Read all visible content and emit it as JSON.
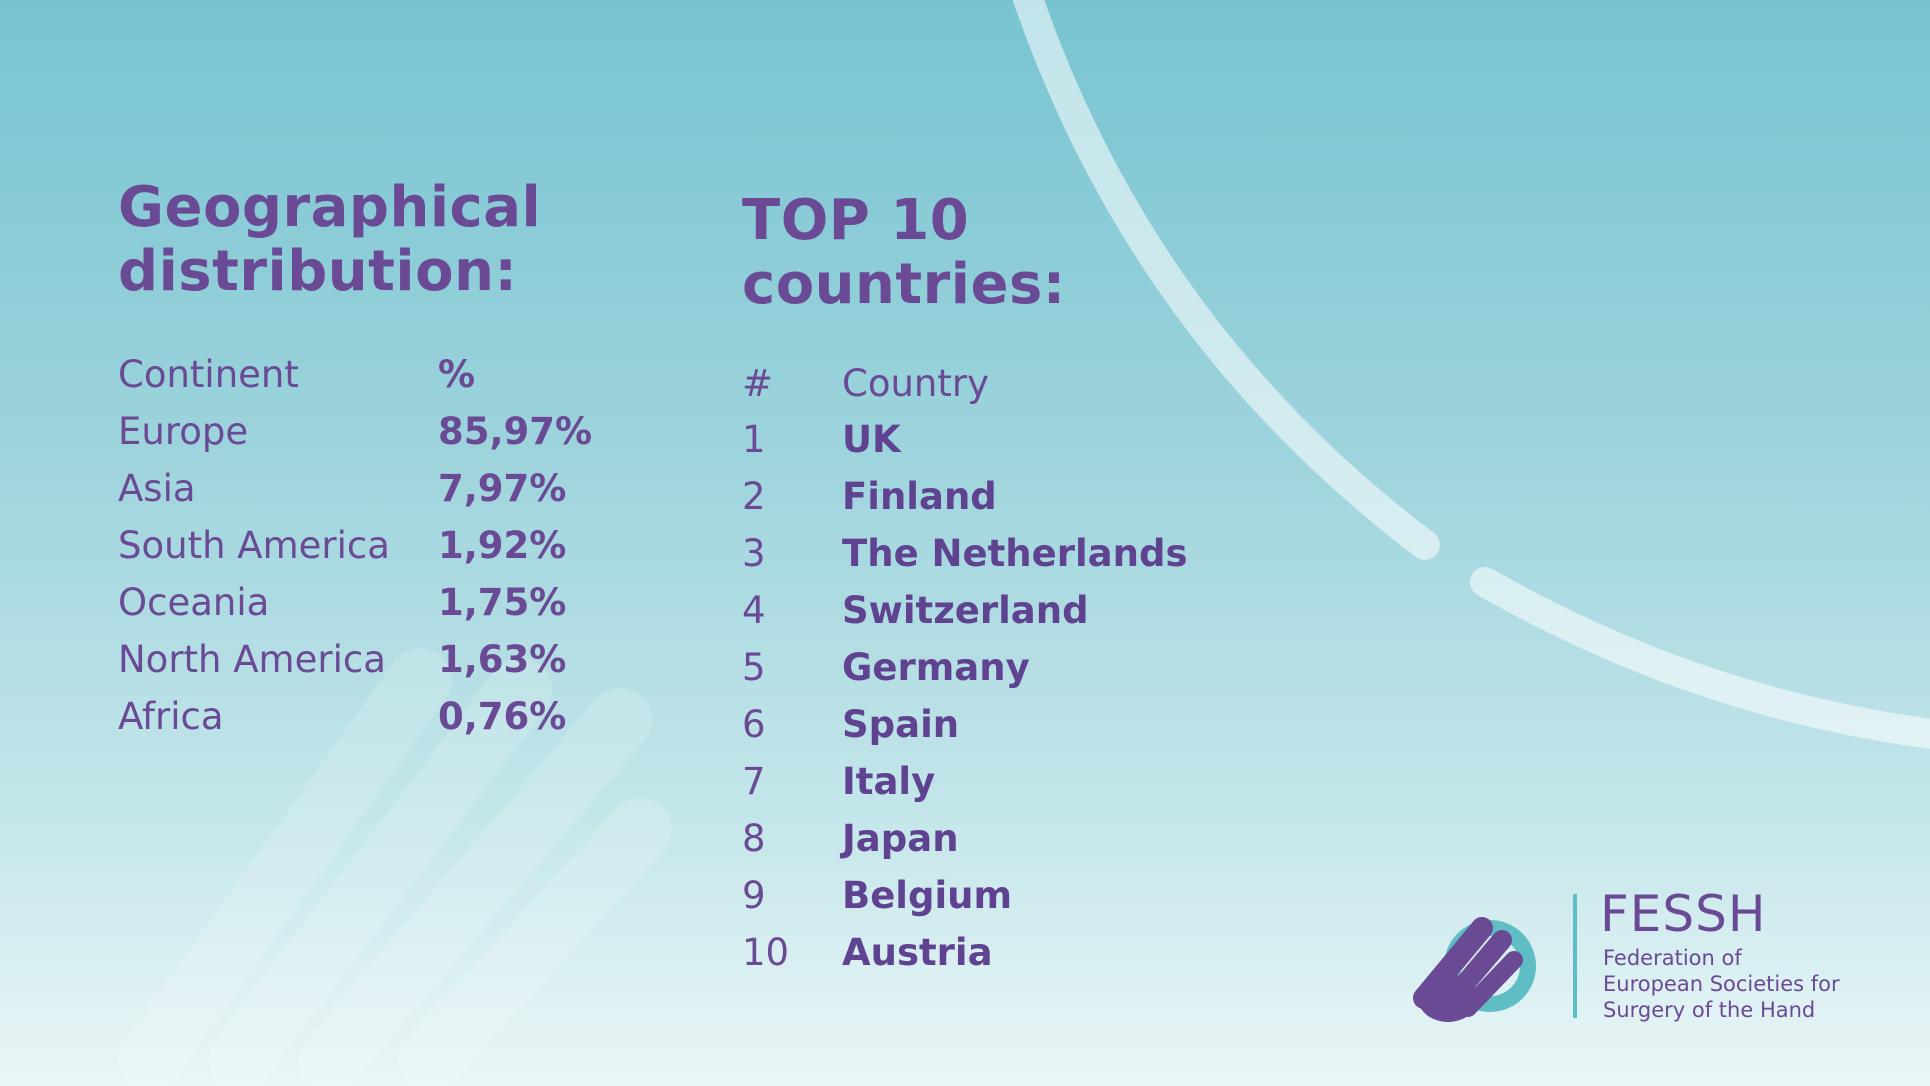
{
  "geo": {
    "title_line1": "Geographical",
    "title_line2": "distribution:",
    "header": {
      "continent": "Continent",
      "percent": "%"
    },
    "rows": [
      {
        "continent": "Europe",
        "percent": "85,97%"
      },
      {
        "continent": "Asia",
        "percent": "7,97%"
      },
      {
        "continent": "South America",
        "percent": "1,92%"
      },
      {
        "continent": "Oceania",
        "percent": "1,75%"
      },
      {
        "continent": "North America",
        "percent": "1,63%"
      },
      {
        "continent": "Africa",
        "percent": "0,76%"
      }
    ]
  },
  "top": {
    "title_line1": "TOP 10",
    "title_line2": "countries:",
    "header": {
      "rank": "#",
      "country": "Country"
    },
    "rows": [
      {
        "rank": "1",
        "country": "UK"
      },
      {
        "rank": "2",
        "country": "Finland"
      },
      {
        "rank": "3",
        "country": "The Netherlands"
      },
      {
        "rank": "4",
        "country": "Switzerland"
      },
      {
        "rank": "5",
        "country": "Germany"
      },
      {
        "rank": "6",
        "country": "Spain"
      },
      {
        "rank": "7",
        "country": "Italy"
      },
      {
        "rank": "8",
        "country": "Japan"
      },
      {
        "rank": "9",
        "country": "Belgium"
      },
      {
        "rank": "10",
        "country": "Austria"
      }
    ]
  },
  "logo": {
    "name": "FESSH",
    "line1": "Federation of",
    "line2": "European Societies for",
    "line3": "Surgery of the Hand",
    "colors": {
      "purple": "#6a4a94",
      "teal": "#5fbec4"
    }
  }
}
